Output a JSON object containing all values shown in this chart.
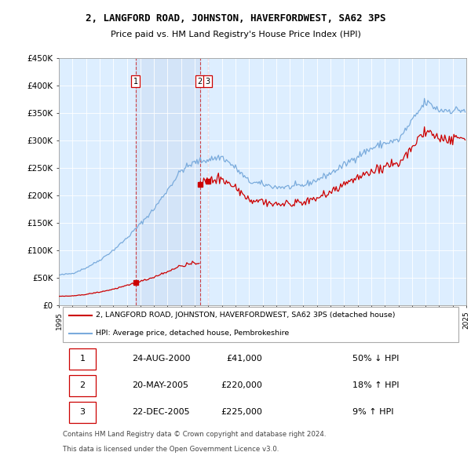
{
  "title": "2, LANGFORD ROAD, JOHNSTON, HAVERFORDWEST, SA62 3PS",
  "subtitle": "Price paid vs. HM Land Registry's House Price Index (HPI)",
  "legend_line1": "2, LANGFORD ROAD, JOHNSTON, HAVERFORDWEST, SA62 3PS (detached house)",
  "legend_line2": "HPI: Average price, detached house, Pembrokeshire",
  "footer1": "Contains HM Land Registry data © Crown copyright and database right 2024.",
  "footer2": "This data is licensed under the Open Government Licence v3.0.",
  "ylim": [
    0,
    450000
  ],
  "yticks": [
    0,
    50000,
    100000,
    150000,
    200000,
    250000,
    300000,
    350000,
    400000,
    450000
  ],
  "ytick_labels": [
    "£0",
    "£50K",
    "£100K",
    "£150K",
    "£200K",
    "£250K",
    "£300K",
    "£350K",
    "£400K",
    "£450K"
  ],
  "red_color": "#cc0000",
  "blue_color": "#7aabdc",
  "background_color": "#ddeeff",
  "transactions": [
    {
      "label": "1",
      "date": "24-AUG-2000",
      "price": 41000,
      "year": 2000.65,
      "hpi_pct": "50% ↓ HPI"
    },
    {
      "label": "2",
      "date": "20-MAY-2005",
      "price": 220000,
      "year": 2005.38,
      "hpi_pct": "18% ↑ HPI"
    },
    {
      "label": "3",
      "date": "22-DEC-2005",
      "price": 225000,
      "year": 2005.97,
      "hpi_pct": "9% ↑ HPI"
    }
  ],
  "xlim": [
    1995.0,
    2025.0
  ],
  "xtick_years": [
    1995,
    1996,
    1997,
    1998,
    1999,
    2000,
    2001,
    2002,
    2003,
    2004,
    2005,
    2006,
    2007,
    2008,
    2009,
    2010,
    2011,
    2012,
    2013,
    2014,
    2015,
    2016,
    2017,
    2018,
    2019,
    2020,
    2021,
    2022,
    2023,
    2024,
    2025
  ]
}
